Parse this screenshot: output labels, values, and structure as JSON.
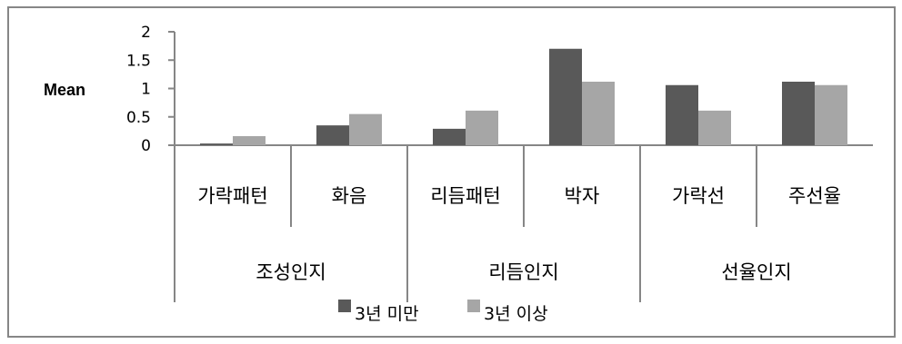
{
  "chart_data": {
    "type": "bar",
    "title": "",
    "xlabel": "",
    "ylabel": "Mean",
    "ylim": [
      0,
      2
    ],
    "yticks": [
      "0",
      "0.5",
      "1",
      "1.5",
      "2"
    ],
    "grid": false,
    "legend_position": "bottom",
    "categories": [
      "가락패턴",
      "화음",
      "리듬패턴",
      "박자",
      "가락선",
      "주선율"
    ],
    "groups": [
      {
        "label": "조성인지",
        "categories": [
          "가락패턴",
          "화음"
        ]
      },
      {
        "label": "리듬인지",
        "categories": [
          "리듬패턴",
          "박자"
        ]
      },
      {
        "label": "선율인지",
        "categories": [
          "가락선",
          "주선율"
        ]
      }
    ],
    "series": [
      {
        "name": "3년 미만",
        "color": "#595959",
        "values": [
          0.03,
          0.35,
          0.29,
          1.7,
          1.06,
          1.12
        ]
      },
      {
        "name": "3년 이상",
        "color": "#A6A6A6",
        "values": [
          0.16,
          0.55,
          0.61,
          1.12,
          0.61,
          1.06
        ]
      }
    ]
  }
}
